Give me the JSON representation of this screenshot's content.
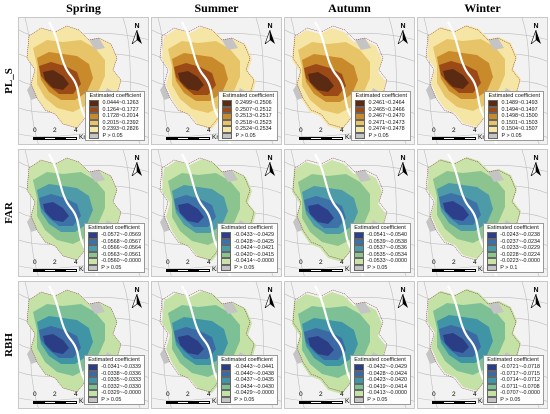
{
  "columns": [
    "Spring",
    "Summer",
    "Autumn",
    "Winter"
  ],
  "rows": [
    "PL_S",
    "FAR",
    "RBH"
  ],
  "legend_title": "Estimated coefficient",
  "north_label": "N",
  "scale": {
    "start": "0",
    "mid": "2",
    "end": "4",
    "unit": "Km"
  },
  "palettes": {
    "PL_S": [
      "#5a2a12",
      "#9b4a17",
      "#c98a2c",
      "#e8c468",
      "#f6e6a6"
    ],
    "FAR": [
      "#2d3f8a",
      "#3d72a8",
      "#4d9aa8",
      "#8cc48f",
      "#c9e3a8"
    ],
    "RBH": [
      "#2b3d84",
      "#3b69a3",
      "#3f95a6",
      "#7ec095",
      "#c5e2a6"
    ]
  },
  "icons": {
    "north": "north-arrow-icon"
  },
  "panels": [
    {
      "row": "PL_S",
      "col": "Spring",
      "legend": [
        "0.0444~0.1263",
        "0.1264~0.1727",
        "0.1728~0.2014",
        "0.2015~0.2392",
        "0.2393~0.2826",
        "P > 0.05"
      ]
    },
    {
      "row": "PL_S",
      "col": "Summer",
      "legend": [
        "0.2499~0.2506",
        "0.2507~0.2512",
        "0.2513~0.2517",
        "0.2518~0.2523",
        "0.2524~0.2534",
        "P > 0.05"
      ]
    },
    {
      "row": "PL_S",
      "col": "Autumn",
      "legend": [
        "0.2461~0.2464",
        "0.2465~0.2466",
        "0.2467~0.2470",
        "0.2471~0.2473",
        "0.2474~0.2478",
        "P > 0.05"
      ]
    },
    {
      "row": "PL_S",
      "col": "Winter",
      "legend": [
        "0.1489~0.1493",
        "0.1494~0.1497",
        "0.1498~0.1500",
        "0.1501~0.1503",
        "0.1504~0.1507",
        "P > 0.05"
      ]
    },
    {
      "row": "FAR",
      "col": "Spring",
      "legend": [
        "-0.0572~-0.0569",
        "-0.0568~-0.0567",
        "-0.0566~-0.0564",
        "-0.0563~-0.0561",
        "-0.0560~-0.0000",
        "P > 0.05"
      ]
    },
    {
      "row": "FAR",
      "col": "Summer",
      "legend": [
        "-0.0433~-0.0429",
        "-0.0428~-0.0425",
        "-0.0424~-0.0421",
        "-0.0420~-0.0415",
        "-0.0414~-0.0000",
        "P > 0.05"
      ]
    },
    {
      "row": "FAR",
      "col": "Autumn",
      "legend": [
        "-0.0541~-0.0540",
        "-0.0539~-0.0538",
        "-0.0537~-0.0536",
        "-0.0535~-0.0534",
        "-0.0533~-0.0000",
        "P > 0.05"
      ]
    },
    {
      "row": "FAR",
      "col": "Winter",
      "legend": [
        "-0.0243~-0.0238",
        "-0.0237~-0.0234",
        "-0.0233~-0.0229",
        "-0.0228~-0.0224",
        "-0.0223~-0.0000",
        "P > 0.1"
      ]
    },
    {
      "row": "RBH",
      "col": "Spring",
      "legend": [
        "-0.0341~-0.0339",
        "-0.0338~-0.0336",
        "-0.0335~-0.0333",
        "-0.0332~-0.0330",
        "-0.0329~-0.0000",
        "P > 0.05"
      ]
    },
    {
      "row": "RBH",
      "col": "Summer",
      "legend": [
        "-0.0443~-0.0441",
        "-0.0440~-0.0438",
        "-0.0437~-0.0435",
        "-0.0434~-0.0430",
        "-0.0429~-0.0000",
        "P > 0.05"
      ]
    },
    {
      "row": "RBH",
      "col": "Autumn",
      "legend": [
        "-0.0432~-0.0429",
        "-0.0428~-0.0424",
        "-0.0423~-0.0420",
        "-0.0419~-0.0414",
        "-0.0413~-0.0000",
        "P > 0.05"
      ]
    },
    {
      "row": "RBH",
      "col": "Winter",
      "legend": [
        "-0.0721~-0.0718",
        "-0.0717~-0.0715",
        "-0.0714~-0.0712",
        "-0.0711~-0.0708",
        "-0.0707~-0.0000",
        "P > 0.05"
      ]
    }
  ]
}
